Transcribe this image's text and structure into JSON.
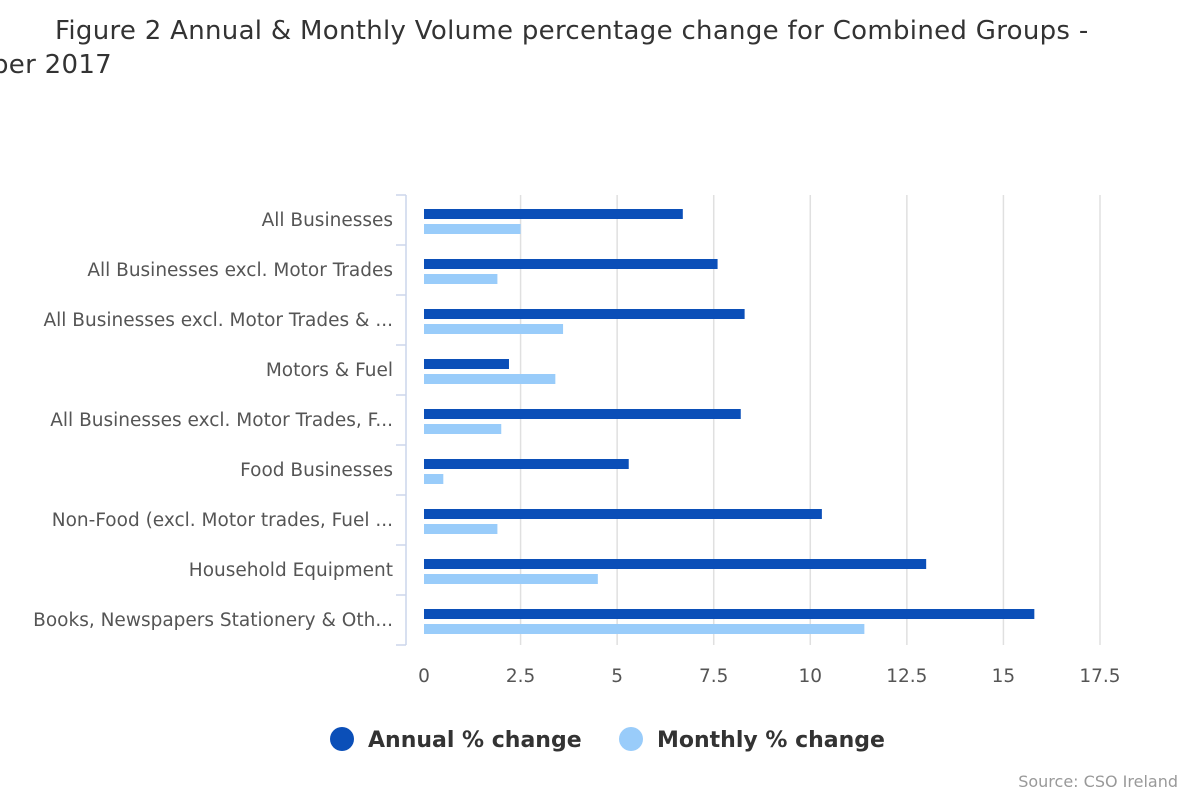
{
  "chart_data": {
    "type": "bar",
    "orientation": "horizontal",
    "title_line1": "Figure 2 Annual & Monthly Volume percentage change for Combined Groups -",
    "title_line2": "ber 2017",
    "categories": [
      "All Businesses",
      "All Businesses excl. Motor Trades",
      "All Businesses excl. Motor Trades & ...",
      "Motors & Fuel",
      "All Businesses excl. Motor Trades, F...",
      "Food Businesses",
      "Non-Food (excl. Motor trades, Fuel ...",
      "Household Equipment",
      "Books, Newspapers Stationery & Oth..."
    ],
    "series": [
      {
        "name": "Annual % change",
        "color": "#0b4fb8",
        "values": [
          6.7,
          7.6,
          8.3,
          2.2,
          8.2,
          5.3,
          10.3,
          13.0,
          15.8
        ]
      },
      {
        "name": "Monthly % change",
        "color": "#99ccfa",
        "values": [
          2.5,
          1.9,
          3.6,
          3.4,
          2.0,
          0.5,
          1.9,
          4.5,
          11.4
        ]
      }
    ],
    "xlim": [
      0,
      17.5
    ],
    "xticks": [
      "0",
      "2.5",
      "5",
      "7.5",
      "10",
      "12.5",
      "15",
      "17.5"
    ],
    "grid": true,
    "legend": "bottom",
    "source": "Source: CSO Ireland"
  }
}
